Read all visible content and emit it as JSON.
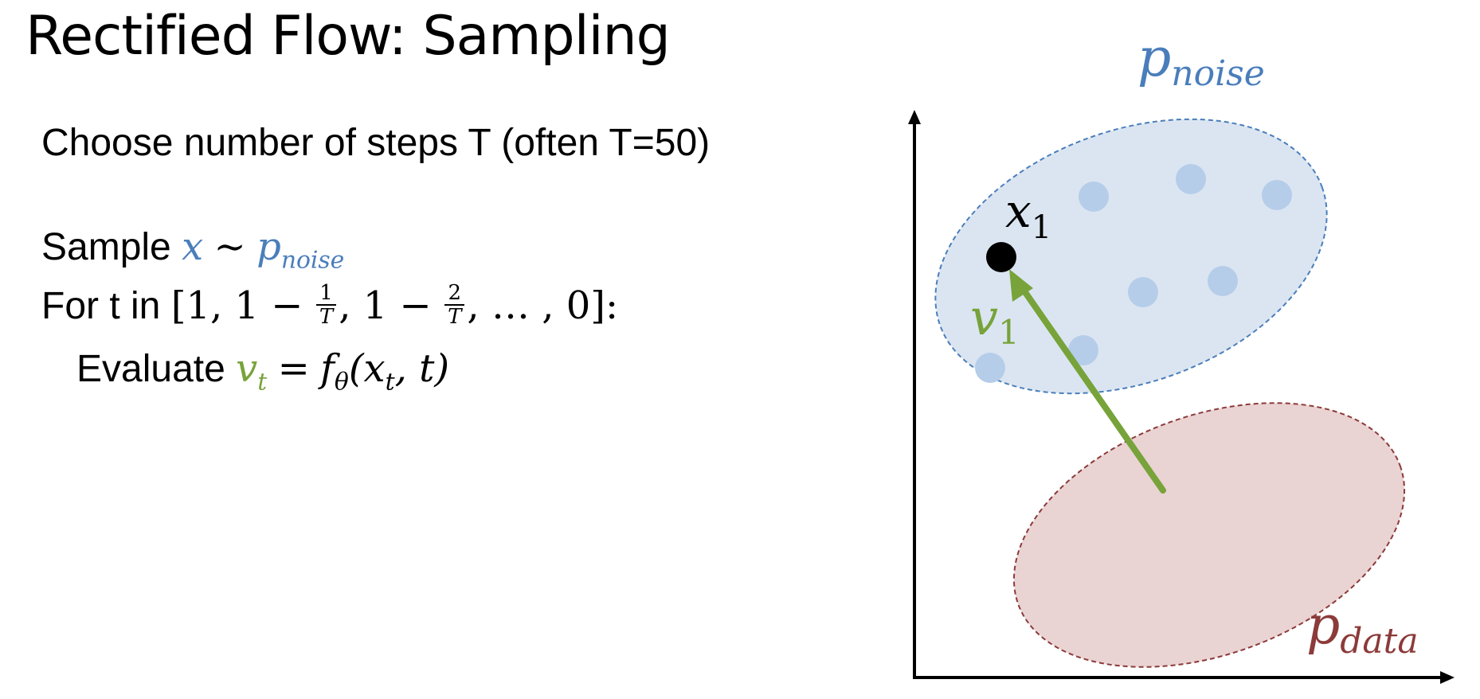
{
  "slide": {
    "title": "Rectified Flow: Sampling",
    "line1": "Choose number of steps T (often T=50)",
    "sample_word": "Sample",
    "sample_x": "x",
    "sample_tilde": "∼",
    "sample_p": "p",
    "sample_p_sub": "noise",
    "for_word": "For t in",
    "for_range_open": "[1, 1 −",
    "frac1_num": "1",
    "frac1_den": "T",
    "for_range_mid": ", 1 −",
    "frac2_num": "2",
    "frac2_den": "T",
    "for_range_close": ", … , 0]:",
    "eval_word": "Evaluate",
    "eval_v": "v",
    "eval_v_sub": "t",
    "eval_eq": "=",
    "eval_f": "f",
    "eval_f_sub": "θ",
    "eval_paren_open": "(x",
    "eval_x_sub": "t",
    "eval_rest": ", t)"
  },
  "diagram": {
    "noise_label": "p",
    "noise_label_sub": "noise",
    "data_label": "p",
    "data_label_sub": "data",
    "x1_label": "x",
    "x1_label_sub": "1",
    "v1_label": "v",
    "v1_label_sub": "1",
    "colors": {
      "noise_fill": "#dbe5f1",
      "noise_stroke": "#4a7ebb",
      "noise_dot": "#b5cde9",
      "data_fill": "#ead3d3",
      "data_stroke": "#8c3a3a",
      "data_label": "#8c3a3a",
      "arrow": "#77a33a",
      "axis": "#000000"
    },
    "icons": {
      "point": "filled-circle",
      "axis_heads": "arrowhead"
    }
  }
}
